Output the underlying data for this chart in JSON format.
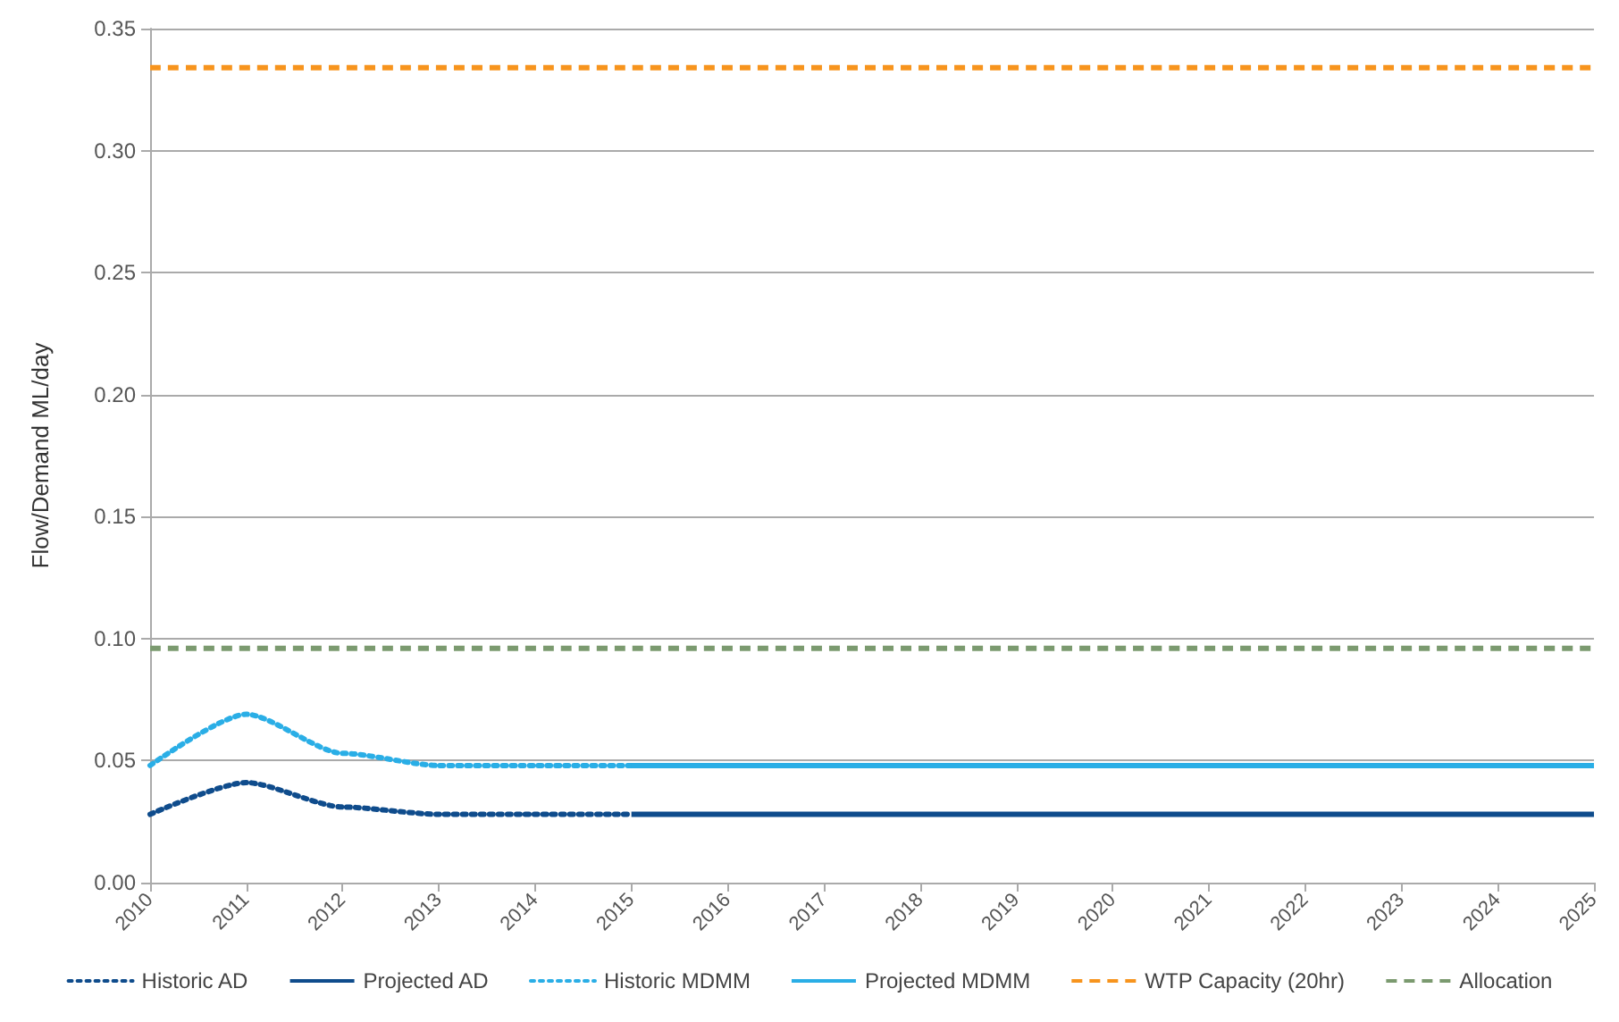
{
  "chart_data": {
    "type": "line",
    "ylabel": "Flow/Demand ML/day",
    "xlim": [
      2010,
      2025
    ],
    "xticks": [
      2010,
      2011,
      2012,
      2013,
      2014,
      2015,
      2016,
      2017,
      2018,
      2019,
      2020,
      2021,
      2022,
      2023,
      2024,
      2025
    ],
    "ylim": [
      0,
      0.35
    ],
    "yticks": [
      {
        "value": 0,
        "label": "0.00"
      },
      {
        "value": 0.05,
        "label": "0.05"
      },
      {
        "value": 0.1,
        "label": "0.10"
      },
      {
        "value": 0.15,
        "label": "0.15"
      },
      {
        "value": 0.2,
        "label": "0.20"
      },
      {
        "value": 0.25,
        "label": "0.25"
      },
      {
        "value": 0.3,
        "label": "0.30"
      },
      {
        "value": 0.35,
        "label": "0.35"
      }
    ],
    "grid": "y",
    "legend": "bottom",
    "marker": "none",
    "series": [
      {
        "name": "Historic AD",
        "color": "#0f4c8c",
        "line_style": "dotted",
        "x": [
          2010,
          2011,
          2012,
          2013,
          2014,
          2015
        ],
        "values": [
          0.028,
          0.041,
          0.031,
          0.028,
          0.028,
          0.028
        ]
      },
      {
        "name": "Projected AD",
        "color": "#0f4c8c",
        "line_style": "solid",
        "x": [
          2015,
          2016,
          2017,
          2018,
          2019,
          2020,
          2021,
          2022,
          2023,
          2024,
          2025
        ],
        "values": [
          0.028,
          0.028,
          0.028,
          0.028,
          0.028,
          0.028,
          0.028,
          0.028,
          0.028,
          0.028,
          0.028
        ]
      },
      {
        "name": "Historic MDMM",
        "color": "#2aaee6",
        "line_style": "dotted",
        "x": [
          2010,
          2011,
          2012,
          2013,
          2014,
          2015
        ],
        "values": [
          0.048,
          0.069,
          0.053,
          0.048,
          0.048,
          0.048
        ]
      },
      {
        "name": "Projected MDMM",
        "color": "#2aaee6",
        "line_style": "solid",
        "x": [
          2015,
          2016,
          2017,
          2018,
          2019,
          2020,
          2021,
          2022,
          2023,
          2024,
          2025
        ],
        "values": [
          0.048,
          0.048,
          0.048,
          0.048,
          0.048,
          0.048,
          0.048,
          0.048,
          0.048,
          0.048,
          0.048
        ]
      },
      {
        "name": "WTP Capacity (20hr)",
        "color": "#f7941d",
        "line_style": "dashed",
        "x": [
          2010,
          2025
        ],
        "values": [
          0.334,
          0.334
        ]
      },
      {
        "name": "Allocation",
        "color": "#7b9a6f",
        "line_style": "dashed",
        "x": [
          2010,
          2025
        ],
        "values": [
          0.096,
          0.096
        ]
      }
    ]
  }
}
